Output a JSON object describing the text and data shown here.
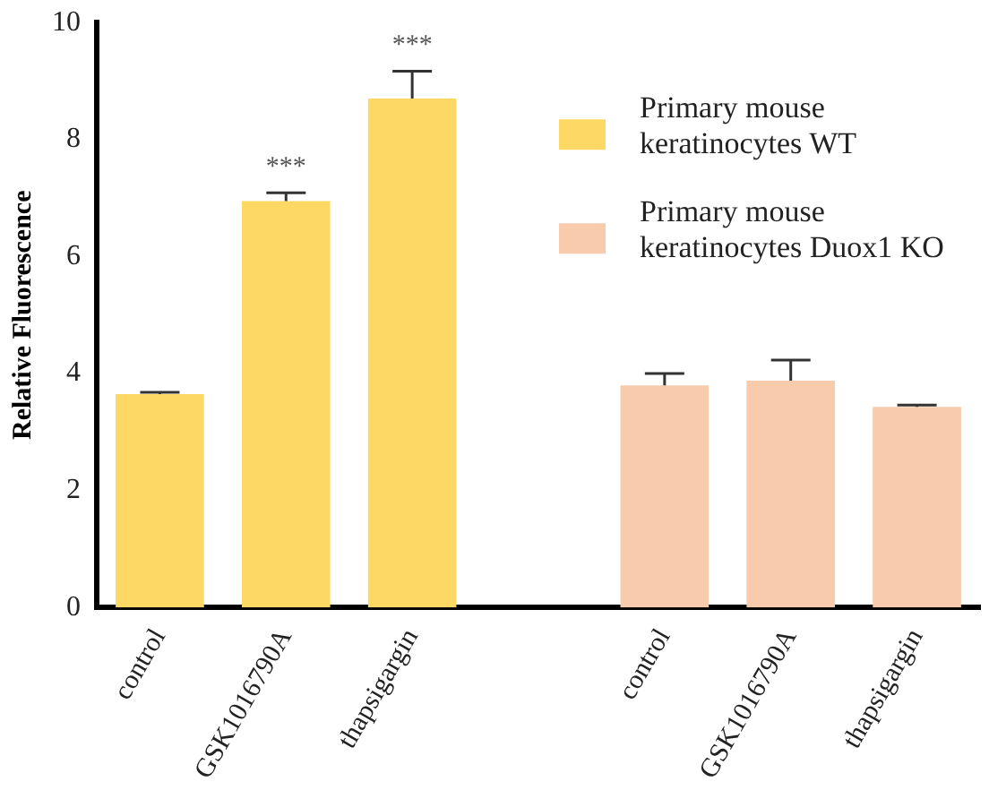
{
  "chart_data": {
    "type": "bar",
    "ylabel": "Relative Fluorescence",
    "categories": [
      "control",
      "GSK1016790A",
      "thapsigargin",
      null,
      "control",
      "GSK1016790A",
      "thapsigargin"
    ],
    "series": [
      {
        "name": "Primary mouse keratinocytes WT",
        "color": "#fdd865",
        "values": [
          3.65,
          6.95,
          8.7,
          null,
          null,
          null,
          null
        ],
        "errors": [
          0.03,
          0.14,
          0.47,
          null,
          null,
          null,
          null
        ]
      },
      {
        "name": "Primary mouse keratinocytes Duox1 KO",
        "color": "#f8cbad",
        "values": [
          null,
          null,
          null,
          null,
          3.8,
          3.88,
          3.43
        ],
        "errors": [
          null,
          null,
          null,
          null,
          0.2,
          0.35,
          0.03
        ]
      }
    ],
    "ylim": [
      0,
      10
    ],
    "yticks": [
      0,
      2,
      4,
      6,
      8,
      10
    ],
    "grid": false,
    "legend": "top right",
    "annotations": [
      "***",
      "***"
    ]
  }
}
